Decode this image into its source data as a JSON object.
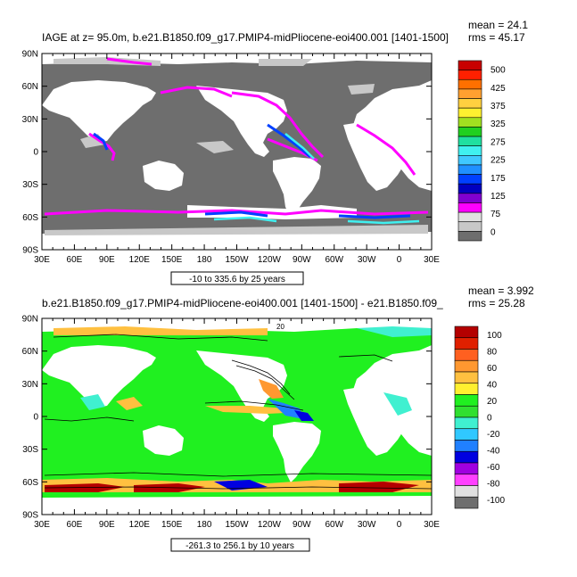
{
  "chart_data": [
    {
      "type": "heatmap",
      "title": "IAGE at z=  95.0m, b.e21.B1850.f09_g17.PMIP4-midPliocene-eoi400.001 [1401-1500]",
      "stats": [
        "mean = 24.1",
        "rms = 45.17"
      ],
      "x_ticks": [
        "30E",
        "60E",
        "90E",
        "120E",
        "150E",
        "180",
        "150W",
        "120W",
        "90W",
        "60W",
        "30W",
        "0",
        "30E"
      ],
      "y_ticks": [
        "90N",
        "60N",
        "30N",
        "0",
        "30S",
        "60S",
        "90S"
      ],
      "xlim_deg_east": [
        30,
        390
      ],
      "ylim_deg_north": [
        -90,
        90
      ],
      "colorbar_labels": [
        "500",
        "425",
        "375",
        "325",
        "275",
        "225",
        "175",
        "125",
        "75",
        "0"
      ],
      "colorbar_colors": [
        "#c80000",
        "#ff2000",
        "#ff7000",
        "#ffa030",
        "#ffd040",
        "#fff030",
        "#a0e020",
        "#20d020",
        "#20e0a0",
        "#40f0f0",
        "#40c8ff",
        "#2090ff",
        "#0040ff",
        "#0000c0",
        "#8000d0",
        "#ff00ff",
        "#e0e0e0",
        "#c8c8c8",
        "#6e6e6e"
      ],
      "contour_info": "-10 to 335.6 by 25 years"
    },
    {
      "type": "heatmap",
      "title": "b.e21.B1850.f09_g17.PMIP4-midPliocene-eoi400.001 [1401-1500] - e21.B1850.f09_",
      "stats": [
        "mean = 3.992",
        "rms = 25.28"
      ],
      "x_ticks": [
        "30E",
        "60E",
        "90E",
        "120E",
        "150E",
        "180",
        "150W",
        "120W",
        "90W",
        "60W",
        "30W",
        "0",
        "30E"
      ],
      "y_ticks": [
        "90N",
        "60N",
        "30N",
        "0",
        "30S",
        "60S",
        "90S"
      ],
      "xlim_deg_east": [
        30,
        390
      ],
      "ylim_deg_north": [
        -90,
        90
      ],
      "colorbar_labels": [
        "100",
        "80",
        "60",
        "40",
        "20",
        "0",
        "-20",
        "-40",
        "-60",
        "-80",
        "-100"
      ],
      "colorbar_colors": [
        "#b40000",
        "#e02000",
        "#ff6020",
        "#ff9830",
        "#ffc040",
        "#fff030",
        "#20f020",
        "#30e030",
        "#40f0d0",
        "#30c8ff",
        "#2080ff",
        "#0000e0",
        "#a000e0",
        "#ff40ff",
        "#e0e0e0",
        "#6e6e6e"
      ],
      "contour_label": "20",
      "contour_info": "-261.3 to 256.1 by 10 years"
    }
  ]
}
